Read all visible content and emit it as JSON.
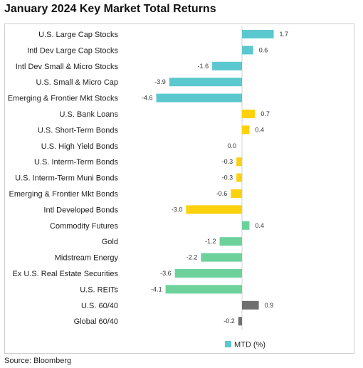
{
  "title": "January 2024 Key Market Total Returns",
  "source": "Source: Bloomberg",
  "colors": {
    "teal": "#5bc8cf",
    "yellow": "#fdd10c",
    "green": "#6dd19c",
    "gray": "#6f6f6f"
  },
  "chart_data": {
    "type": "bar",
    "orientation": "horizontal",
    "grid": false,
    "legend": {
      "position": "bottom",
      "entries": [
        {
          "label": "MTD (%)",
          "color": "#5bc8cf"
        }
      ]
    },
    "xlim": [
      -5.5,
      2.9
    ],
    "categories": [
      "U.S. Large Cap Stocks",
      "Intl Dev Large Cap Stocks",
      "Intl Dev Small & Micro Stocks",
      "U.S. Small & Micro Cap",
      "Emerging & Frontier Mkt Stocks",
      "U.S. Bank Loans",
      "U.S. Short-Term Bonds",
      "U.S. High Yield Bonds",
      "U.S. Interm-Term Bonds",
      "U.S. Interm-Term Muni Bonds",
      "Emerging & Frontier Mkt Bonds",
      "Intl Developed Bonds",
      "Commodity Futures",
      "Gold",
      "Midstream Energy",
      "Ex U.S. Real Estate Securities",
      "U.S. REITs",
      "U.S. 60/40",
      "Global 60/40"
    ],
    "values": [
      1.7,
      0.6,
      -1.6,
      -3.9,
      -4.6,
      0.7,
      0.4,
      0.0,
      -0.3,
      -0.3,
      -0.6,
      -3.0,
      0.4,
      -1.2,
      -2.2,
      -3.6,
      -4.1,
      0.9,
      -0.2
    ],
    "value_labels": [
      "1.7",
      "0.6",
      "-1.6",
      "-3.9",
      "-4.6",
      "0.7",
      "0.4",
      "0.0",
      "-0.3",
      "-0.3",
      "-0.6",
      "-3.0",
      "0.4",
      "-1.2",
      "-2.2",
      "-3.6",
      "-4.1",
      "0.9",
      "-0.2"
    ],
    "bar_colors": [
      "teal",
      "teal",
      "teal",
      "teal",
      "teal",
      "yellow",
      "yellow",
      "yellow",
      "yellow",
      "yellow",
      "yellow",
      "yellow",
      "green",
      "green",
      "green",
      "green",
      "green",
      "gray",
      "gray"
    ]
  }
}
